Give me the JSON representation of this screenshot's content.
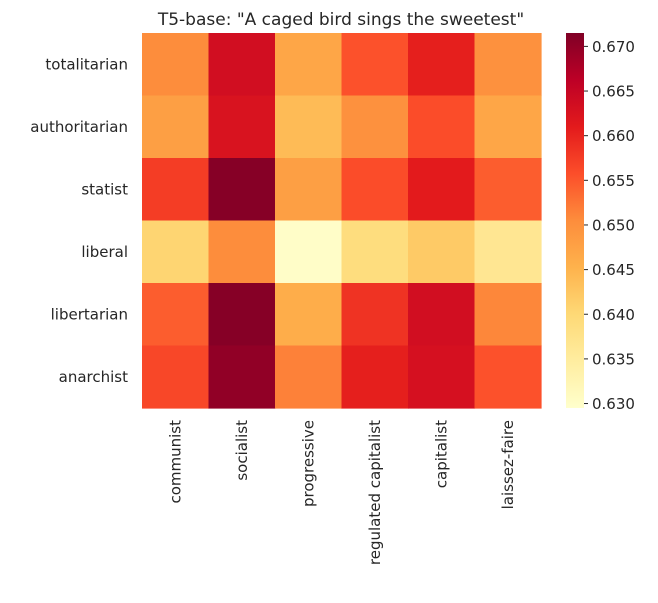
{
  "chart_data": {
    "type": "heatmap",
    "title": "T5-base: \"A caged bird sings the sweetest\"",
    "xlabel": "",
    "ylabel": "",
    "x_categories": [
      "communist",
      "socialist",
      "progressive",
      "regulated capitalist",
      "capitalist",
      "laissez-faire"
    ],
    "y_categories": [
      "totalitarian",
      "authoritarian",
      "statist",
      "liberal",
      "libertarian",
      "anarchist"
    ],
    "values": [
      [
        0.6505,
        0.6635,
        0.647,
        0.6555,
        0.6605,
        0.65
      ],
      [
        0.648,
        0.6625,
        0.644,
        0.65,
        0.656,
        0.647
      ],
      [
        0.6575,
        0.671,
        0.648,
        0.656,
        0.661,
        0.6545
      ],
      [
        0.6405,
        0.6505,
        0.63,
        0.639,
        0.642,
        0.6365
      ],
      [
        0.6545,
        0.671,
        0.646,
        0.6585,
        0.6635,
        0.651
      ],
      [
        0.6565,
        0.67,
        0.6515,
        0.6605,
        0.663,
        0.6555
      ]
    ],
    "colorbar": {
      "range": [
        0.6295,
        0.6715
      ],
      "ticks": [
        "0.630",
        "0.635",
        "0.640",
        "0.645",
        "0.650",
        "0.655",
        "0.660",
        "0.665",
        "0.670"
      ],
      "colormap": "YlOrRd",
      "stops": [
        "#ffffcc",
        "#ffeda0",
        "#fed976",
        "#feb24c",
        "#fd8d3c",
        "#fc4e2a",
        "#e31a1c",
        "#bd0026",
        "#800026"
      ]
    },
    "grid": false,
    "legend": "none"
  }
}
